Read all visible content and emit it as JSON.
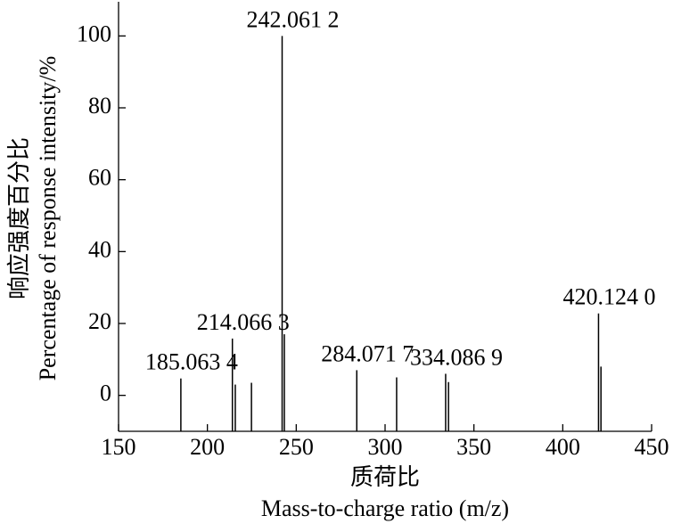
{
  "chart_data": {
    "type": "stem",
    "y_title_lines": [
      "响应强度百分比",
      "Percentage of response intensity/%"
    ],
    "x_title_lines": [
      "质荷比",
      "Mass-to-charge ratio (m/z)"
    ],
    "color": "#000000",
    "x": [
      185.0634,
      214.0663,
      215.7,
      224.8,
      242.0612,
      243.3,
      284.0717,
      306.5,
      334.0869,
      335.7,
      420.124,
      421.5
    ],
    "values": [
      4.7,
      15.8,
      3,
      3.5,
      100,
      17,
      7,
      5,
      6,
      3.7,
      22.8,
      8
    ],
    "peak_labels": [
      "185.063 4",
      "214.066 3",
      null,
      null,
      "242.061 2",
      null,
      "284.071 7",
      null,
      "334.086 9",
      null,
      "420.124 0",
      null
    ],
    "xlim": [
      150,
      450
    ],
    "xticks": [
      150,
      200,
      250,
      300,
      350,
      400,
      450
    ],
    "ylim": [
      -10,
      110
    ],
    "yticks": [
      0,
      20,
      40,
      60,
      80,
      100
    ]
  }
}
